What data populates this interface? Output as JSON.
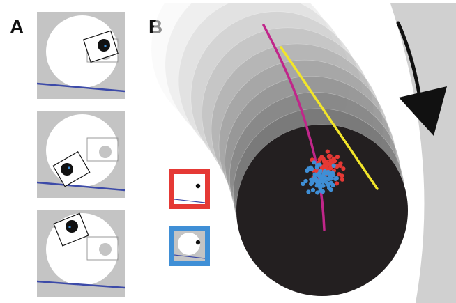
{
  "panel_a": {
    "label": "A"
  },
  "panel_b": {
    "label": "B"
  },
  "colors": {
    "background_gray": "#c4c4c4",
    "disk_white": "#ffffff",
    "trajectory_magenta": "#c0268a",
    "trajectory_yellow": "#f2e52a",
    "points_red": "#e53935",
    "points_blue": "#3f8fd6",
    "horizon_line": "#3c4aa8",
    "legend_red_frame": "#e53935",
    "legend_blue_frame": "#3f8fd6",
    "arrow": "#111111",
    "final_disk": "#231f20"
  },
  "icons": [
    "curved-arrow-icon"
  ]
}
